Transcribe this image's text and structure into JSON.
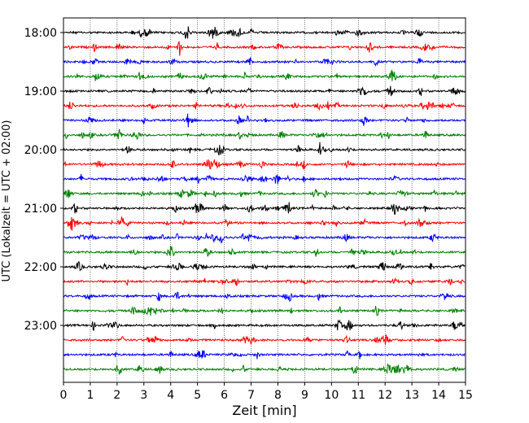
{
  "chart_data": {
    "type": "line",
    "title": "",
    "xlabel": "Zeit  [min]",
    "ylabel": "UTC (Lokalzeit = UTC + 02:00)",
    "xlim": [
      0,
      15
    ],
    "x_ticks": [
      "0",
      "1",
      "2",
      "3",
      "4",
      "5",
      "6",
      "7",
      "8",
      "9",
      "10",
      "11",
      "12",
      "13",
      "14",
      "15"
    ],
    "y_tick_labels": [
      "18:00",
      "19:00",
      "20:00",
      "21:00",
      "22:00",
      "23:00"
    ],
    "trace_start_times": [
      "18:00",
      "18:15",
      "18:30",
      "18:45",
      "19:00",
      "19:15",
      "19:30",
      "19:45",
      "20:00",
      "20:15",
      "20:30",
      "20:45",
      "21:00",
      "21:15",
      "21:30",
      "21:45",
      "22:00",
      "22:15",
      "22:30",
      "22:45",
      "23:00",
      "23:15",
      "23:30",
      "23:45"
    ],
    "trace_colors": [
      "#000000",
      "#ff0000",
      "#0000ff",
      "#008000"
    ],
    "grid": {
      "x": true,
      "y": false
    },
    "legend": "none"
  }
}
